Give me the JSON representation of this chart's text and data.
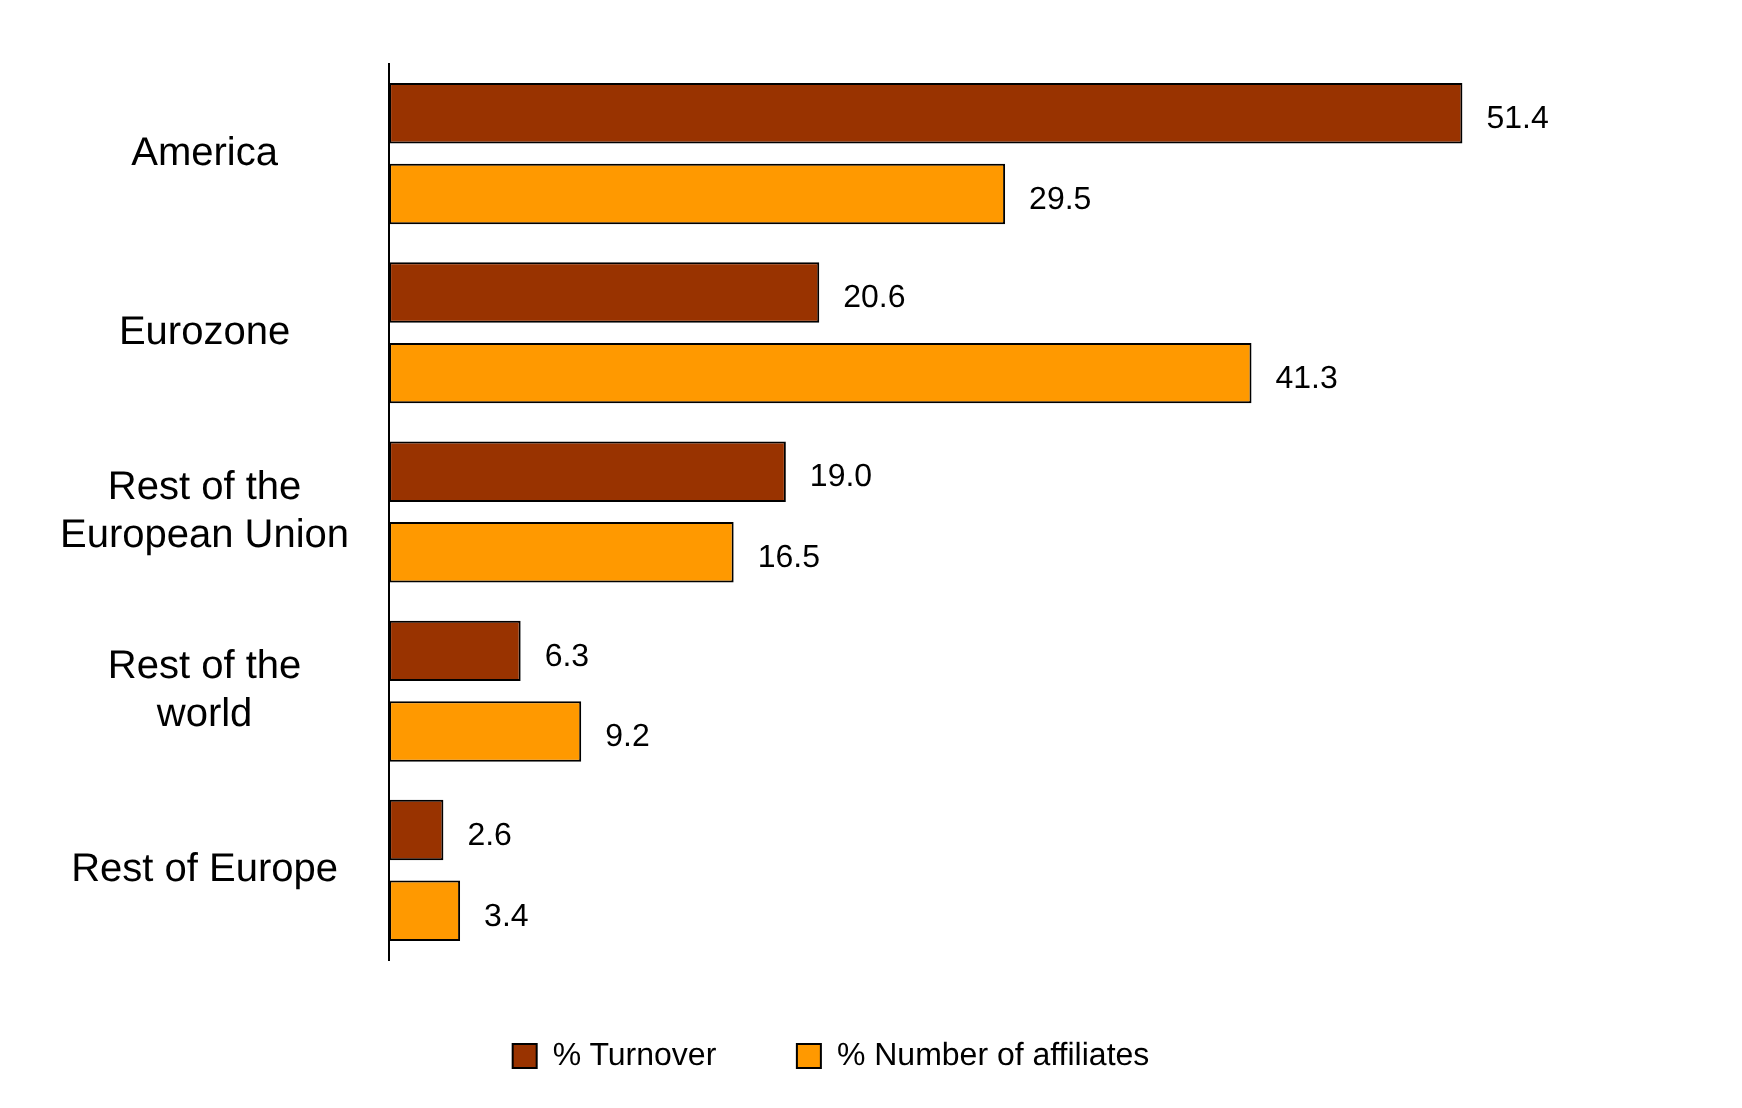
{
  "chart_data": {
    "type": "bar",
    "orientation": "horizontal",
    "categories": [
      [
        "America"
      ],
      [
        "Eurozone"
      ],
      [
        "Rest of the",
        "European Union"
      ],
      [
        "Rest of the",
        "world"
      ],
      [
        "Rest of Europe"
      ]
    ],
    "series": [
      {
        "name": "% Turnover",
        "color": "#993300",
        "values": [
          51.4,
          20.6,
          19.0,
          6.3,
          2.6
        ],
        "value_labels": [
          "51.4",
          "20.6",
          "19.0",
          "6.3",
          "2.6"
        ]
      },
      {
        "name": "% Number of affiliates",
        "color": "#ff9900",
        "values": [
          29.5,
          41.3,
          16.5,
          9.2,
          3.4
        ],
        "value_labels": [
          "29.5",
          "41.3",
          "16.5",
          "9.2",
          "3.4"
        ]
      }
    ],
    "legend": "bottom"
  }
}
